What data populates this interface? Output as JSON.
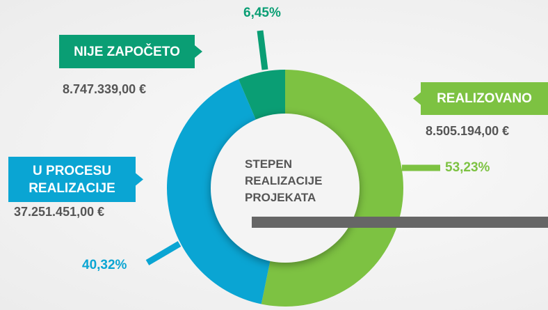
{
  "chart_data": {
    "type": "pie",
    "center_label": "STEPEN REALIZACIJE PROJEKATA",
    "labels": [
      "REALIZOVANO",
      "U PROCESU REALIZACIJE",
      "NIJE ZAPOČETO"
    ],
    "values": [
      53.23,
      40.32,
      6.45
    ],
    "value_labels": [
      "53,23%",
      "40,32%",
      "6,45%"
    ],
    "amount_labels": [
      "8.505.194,00 €",
      "37.251.451,00 €",
      "8.747.339,00 €"
    ],
    "colors": [
      "#7dc242",
      "#0aa5d3",
      "#0a9e74"
    ]
  }
}
